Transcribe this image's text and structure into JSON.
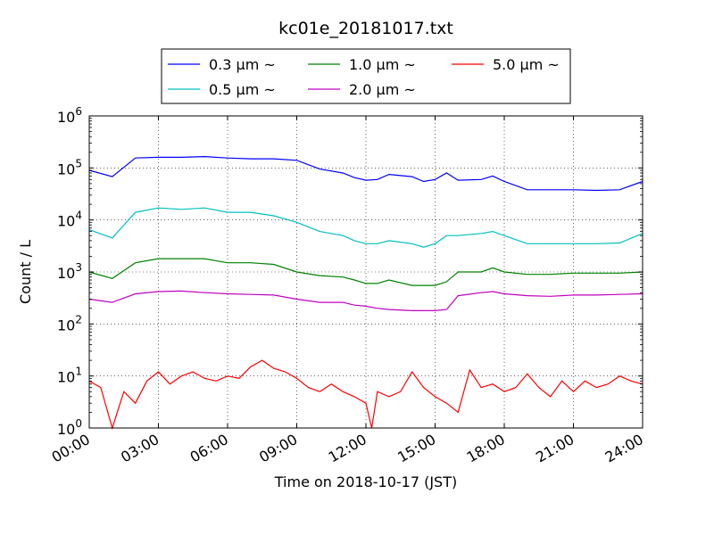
{
  "chart_data": {
    "type": "line",
    "title": "kc01e_20181017.txt",
    "xlabel": "Time on 2018-10-17 (JST)",
    "ylabel": "Count / L",
    "y_scale": "log",
    "ylim": [
      1,
      1000000
    ],
    "xlim": [
      "00:00",
      "24:00"
    ],
    "x_tick_labels": [
      "00:00",
      "03:00",
      "06:00",
      "09:00",
      "12:00",
      "15:00",
      "18:00",
      "21:00",
      "24:00"
    ],
    "y_tick_exponents": [
      "0",
      "1",
      "2",
      "3",
      "4",
      "5",
      "6"
    ],
    "y_tick_base": "10",
    "grid": true,
    "legend_position": "top-center, outside plot",
    "series": [
      {
        "name": "0.3 μm ~",
        "color": "#0000ff",
        "x": [
          "00:00",
          "01:00",
          "02:00",
          "03:00",
          "04:00",
          "05:00",
          "06:00",
          "07:00",
          "08:00",
          "09:00",
          "10:00",
          "11:00",
          "11:30",
          "12:00",
          "12:30",
          "13:00",
          "14:00",
          "14:30",
          "15:00",
          "15:30",
          "16:00",
          "17:00",
          "17:30",
          "18:00",
          "19:00",
          "20:00",
          "21:00",
          "22:00",
          "23:00",
          "24:00"
        ],
        "y": [
          90000,
          68000,
          155000,
          160000,
          160000,
          165000,
          155000,
          150000,
          150000,
          140000,
          95000,
          80000,
          65000,
          58000,
          60000,
          75000,
          68000,
          55000,
          60000,
          80000,
          58000,
          60000,
          70000,
          55000,
          38000,
          38000,
          38000,
          37000,
          38000,
          55000
        ]
      },
      {
        "name": "0.5 μm ~",
        "color": "#00bfbf",
        "x": [
          "00:00",
          "01:00",
          "02:00",
          "03:00",
          "04:00",
          "05:00",
          "06:00",
          "07:00",
          "08:00",
          "09:00",
          "10:00",
          "11:00",
          "11:30",
          "12:00",
          "12:30",
          "13:00",
          "14:00",
          "14:30",
          "15:00",
          "15:30",
          "16:00",
          "17:00",
          "17:30",
          "18:00",
          "19:00",
          "20:00",
          "21:00",
          "22:00",
          "23:00",
          "24:00"
        ],
        "y": [
          6500,
          4500,
          14000,
          17000,
          16000,
          17000,
          14000,
          14000,
          12000,
          9000,
          6000,
          5000,
          4000,
          3500,
          3500,
          4000,
          3500,
          3000,
          3500,
          5000,
          5000,
          5500,
          6000,
          5000,
          3500,
          3500,
          3500,
          3500,
          3600,
          5500
        ]
      },
      {
        "name": "1.0 μm ~",
        "color": "#008000",
        "x": [
          "00:00",
          "01:00",
          "02:00",
          "03:00",
          "04:00",
          "05:00",
          "06:00",
          "07:00",
          "08:00",
          "09:00",
          "10:00",
          "11:00",
          "11:30",
          "12:00",
          "12:30",
          "13:00",
          "14:00",
          "14:30",
          "15:00",
          "15:30",
          "16:00",
          "17:00",
          "17:30",
          "18:00",
          "19:00",
          "20:00",
          "21:00",
          "22:00",
          "23:00",
          "24:00"
        ],
        "y": [
          1000,
          750,
          1500,
          1800,
          1800,
          1800,
          1500,
          1500,
          1400,
          1000,
          850,
          800,
          700,
          600,
          600,
          700,
          550,
          550,
          550,
          650,
          1000,
          1000,
          1200,
          1000,
          900,
          900,
          950,
          950,
          950,
          1000
        ]
      },
      {
        "name": "2.0 μm ~",
        "color": "#bf00bf",
        "x": [
          "00:00",
          "01:00",
          "02:00",
          "03:00",
          "04:00",
          "05:00",
          "06:00",
          "07:00",
          "08:00",
          "09:00",
          "10:00",
          "11:00",
          "11:30",
          "12:00",
          "12:30",
          "13:00",
          "14:00",
          "14:30",
          "15:00",
          "15:30",
          "16:00",
          "17:00",
          "17:30",
          "18:00",
          "19:00",
          "20:00",
          "21:00",
          "22:00",
          "23:00",
          "24:00"
        ],
        "y": [
          300,
          260,
          380,
          420,
          430,
          400,
          380,
          370,
          360,
          300,
          260,
          260,
          230,
          220,
          200,
          190,
          180,
          180,
          180,
          190,
          350,
          400,
          420,
          380,
          350,
          340,
          360,
          360,
          370,
          380
        ]
      },
      {
        "name": "5.0 μm ~",
        "color": "#ff0000",
        "x": [
          "00:00",
          "00:30",
          "01:00",
          "01:30",
          "02:00",
          "02:30",
          "03:00",
          "03:30",
          "04:00",
          "04:30",
          "05:00",
          "05:30",
          "06:00",
          "06:30",
          "07:00",
          "07:30",
          "08:00",
          "08:30",
          "09:00",
          "09:30",
          "10:00",
          "10:30",
          "11:00",
          "11:30",
          "12:00",
          "12:15",
          "12:30",
          "13:00",
          "13:30",
          "14:00",
          "14:30",
          "15:00",
          "15:30",
          "16:00",
          "16:30",
          "17:00",
          "17:30",
          "18:00",
          "18:30",
          "19:00",
          "19:30",
          "20:00",
          "20:30",
          "21:00",
          "21:30",
          "22:00",
          "22:30",
          "23:00",
          "23:30",
          "24:00"
        ],
        "y": [
          8,
          6,
          1,
          5,
          3,
          8,
          12,
          7,
          10,
          12,
          9,
          8,
          10,
          9,
          15,
          20,
          14,
          12,
          9,
          6,
          5,
          7,
          5,
          4,
          3,
          1,
          5,
          4,
          5,
          12,
          6,
          4,
          3,
          2,
          13,
          6,
          7,
          5,
          6,
          11,
          6,
          4,
          8,
          5,
          8,
          6,
          7,
          10,
          8,
          7
        ]
      }
    ]
  }
}
